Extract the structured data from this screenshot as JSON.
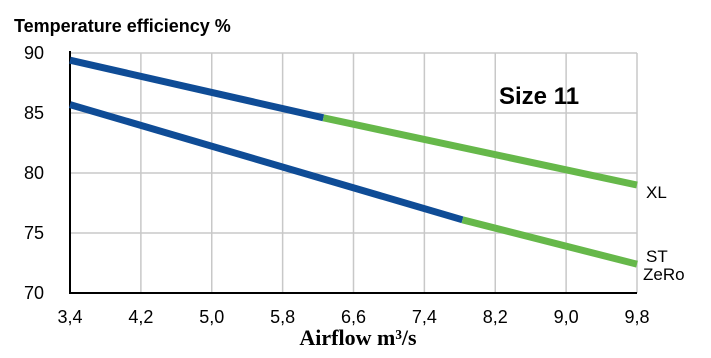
{
  "chart_data": {
    "type": "line",
    "title": "Temperature efficiency %",
    "xlabel": "Airflow m³/s",
    "ylabel": "",
    "annotation": "Size 11",
    "x_ticks": [
      "3,4",
      "4,2",
      "5,0",
      "5,8",
      "6,6",
      "7,4",
      "8,2",
      "9,0",
      "9,8"
    ],
    "y_ticks": [
      "90",
      "85",
      "80",
      "75",
      "70"
    ],
    "xlim": [
      3.4,
      9.8
    ],
    "ylim": [
      70,
      90
    ],
    "grid": true,
    "colors": {
      "primary_range": "#0f4c96",
      "extended_range": "#66b84a",
      "grid": "#c8c8c8"
    },
    "series": [
      {
        "name": "XL",
        "x": [
          3.4,
          6.26,
          9.8
        ],
        "y": [
          89.4,
          84.6,
          79.0
        ],
        "segments": [
          {
            "from_x": 3.4,
            "to_x": 6.26,
            "color": "#0f4c96"
          },
          {
            "from_x": 6.26,
            "to_x": 9.8,
            "color": "#66b84a"
          }
        ]
      },
      {
        "name": "ST",
        "name_secondary": "ZeRo",
        "x": [
          3.4,
          7.83,
          9.8
        ],
        "y": [
          85.7,
          76.1,
          72.4
        ],
        "segments": [
          {
            "from_x": 3.4,
            "to_x": 7.83,
            "color": "#0f4c96"
          },
          {
            "from_x": 7.83,
            "to_x": 9.8,
            "color": "#66b84a"
          }
        ]
      }
    ]
  }
}
